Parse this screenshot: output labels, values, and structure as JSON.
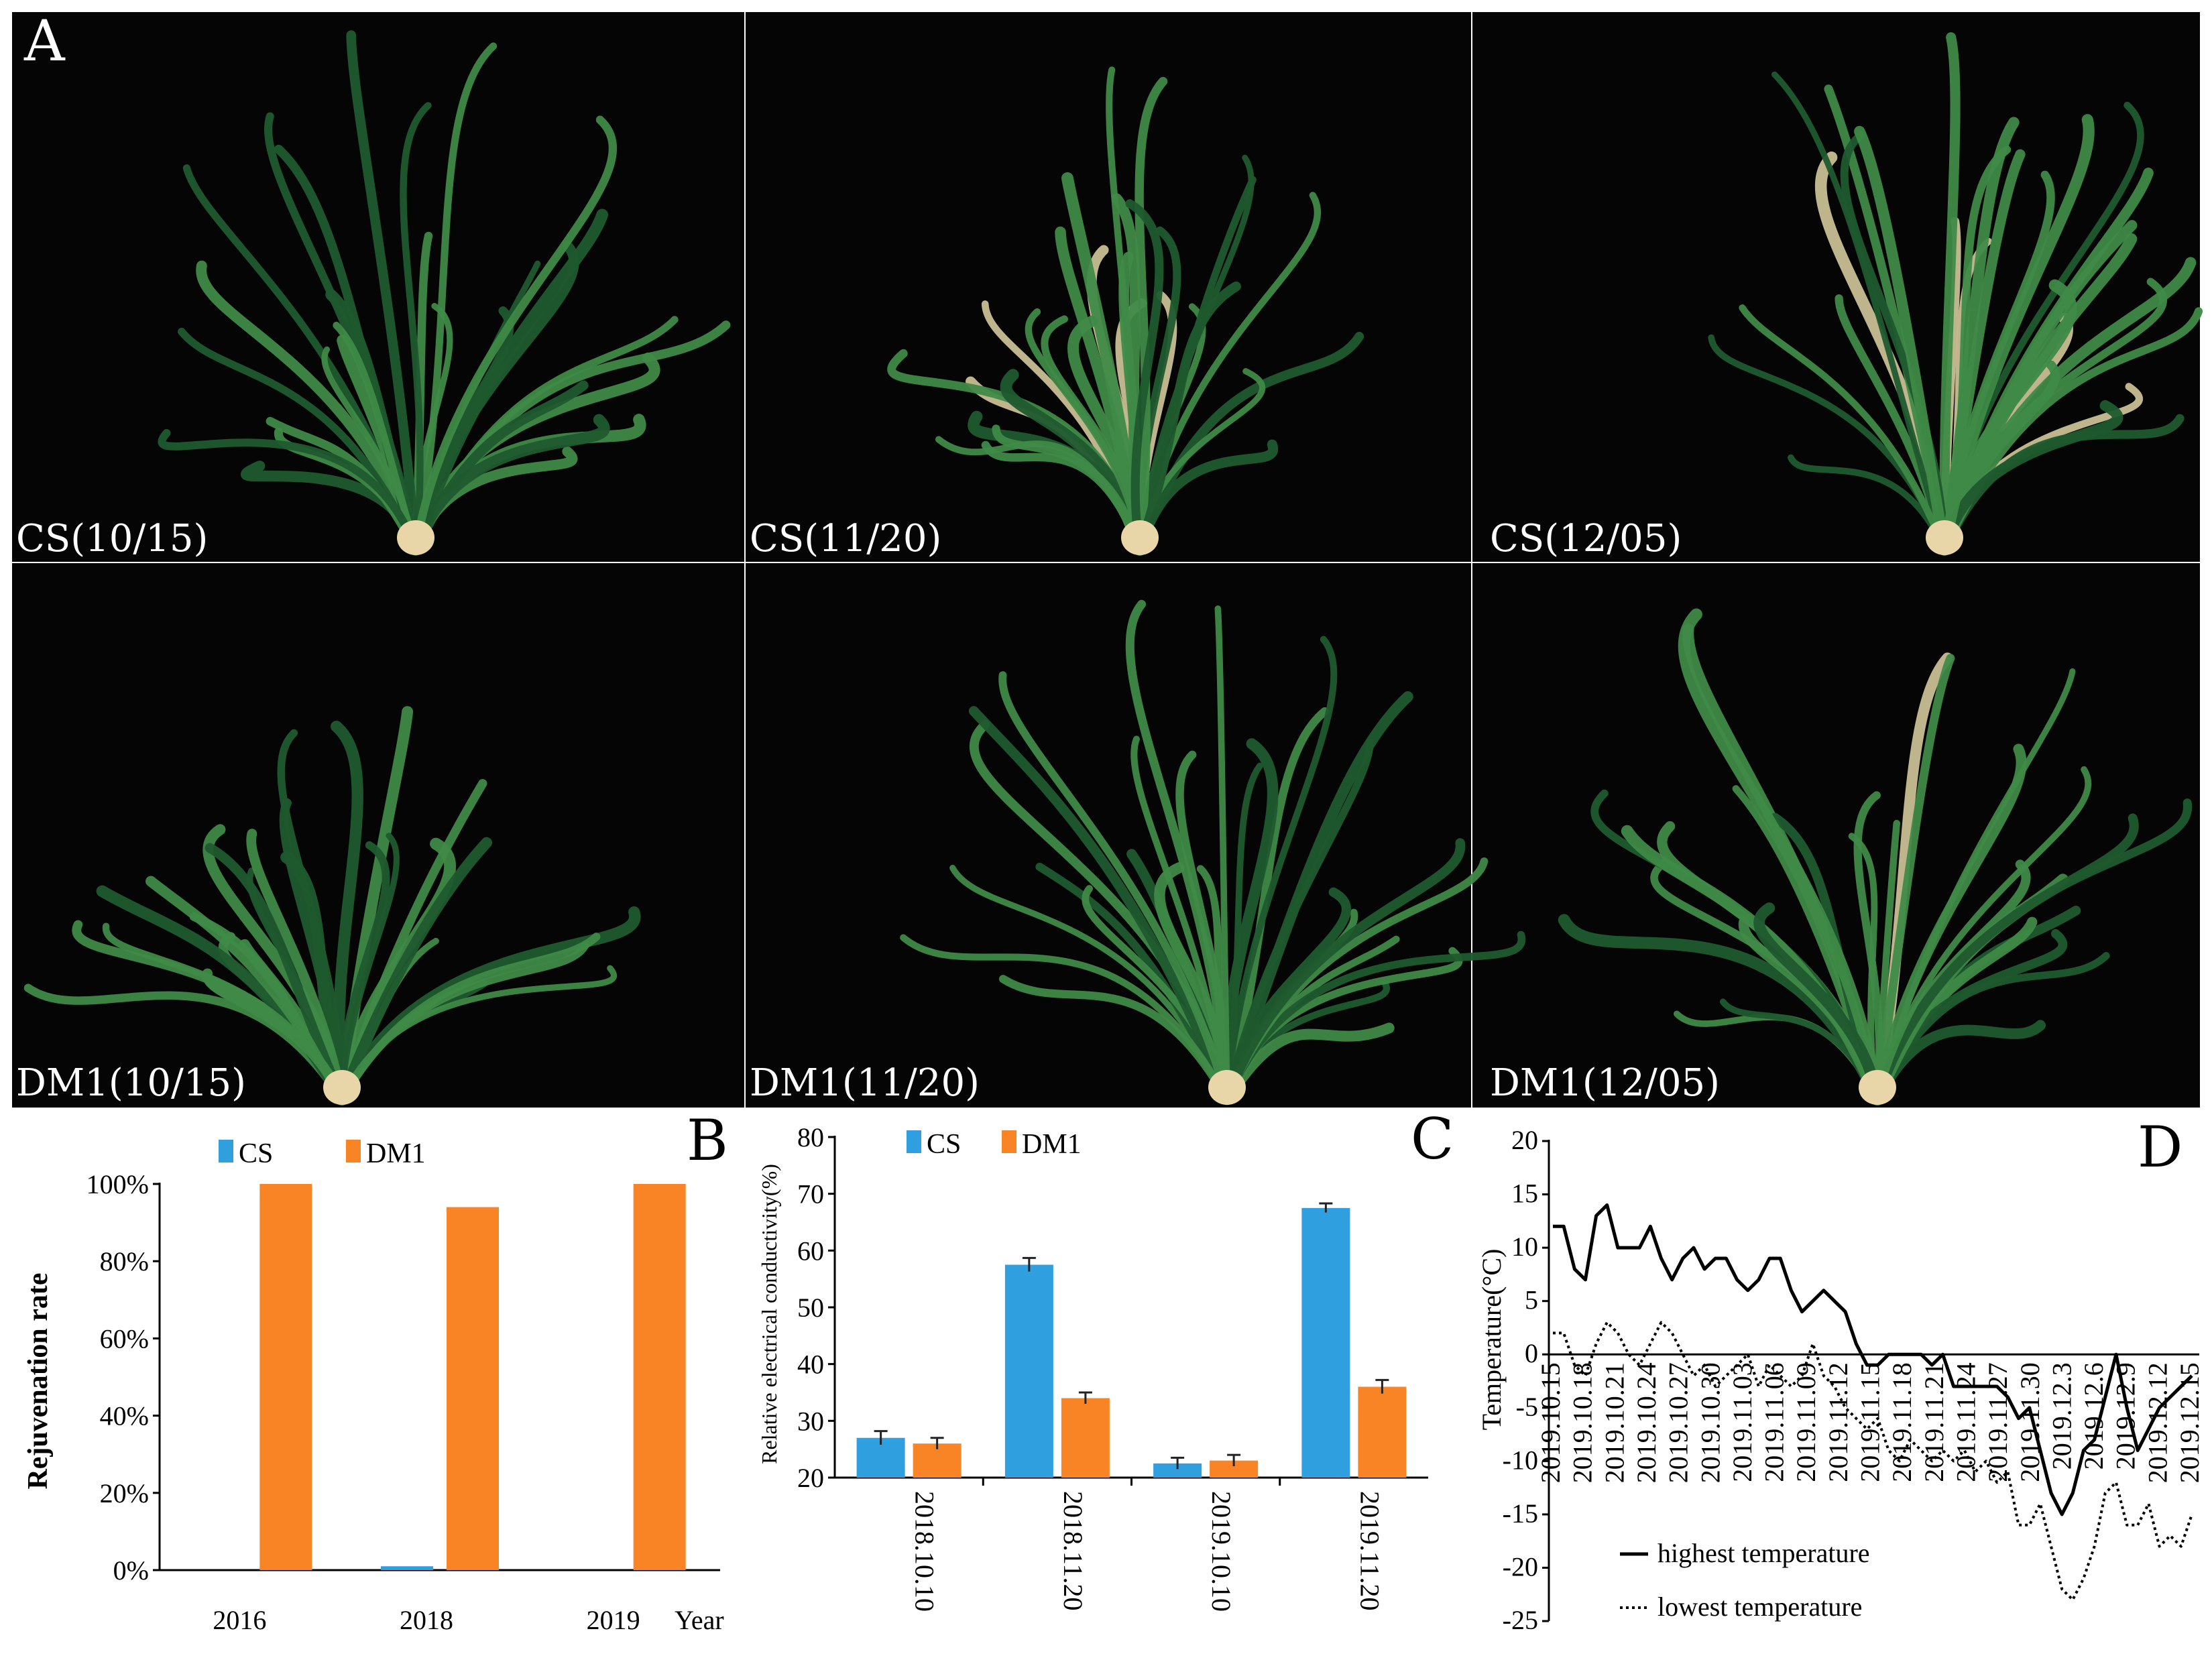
{
  "figure": {
    "panel_letters": {
      "a": "A",
      "b": "B",
      "c": "C",
      "d": "D"
    }
  },
  "photos": {
    "top_row": [
      {
        "label": "CS(10/15)"
      },
      {
        "label": "CS(11/20)"
      },
      {
        "label": "CS(12/05)"
      }
    ],
    "bottom_row": [
      {
        "label": "DM1(10/15)"
      },
      {
        "label": "DM1(11/20)"
      },
      {
        "label": "DM1(12/05)"
      }
    ]
  },
  "colors": {
    "cs": "#2f9fe0",
    "dm1": "#f98426",
    "photo_bg": "#050505",
    "leaf_dark": "#1f5a2e",
    "leaf_light": "#3f8a47",
    "leaf_dry": "#c9bf94",
    "crown": "#e8d6a8"
  },
  "chart_data": [
    {
      "id": "B",
      "type": "bar",
      "categories": [
        "2016",
        "2018",
        "2019"
      ],
      "series": [
        {
          "name": "CS",
          "values": [
            0,
            1,
            0
          ]
        },
        {
          "name": "DM1",
          "values": [
            100,
            94,
            100
          ]
        }
      ],
      "ylabel": "Rejuvenation rate",
      "xlabel": "Year",
      "ylim": [
        0,
        100
      ],
      "y_ticks": [
        "0%",
        "20%",
        "40%",
        "60%",
        "80%",
        "100%"
      ],
      "legend": [
        "CS",
        "DM1"
      ]
    },
    {
      "id": "C",
      "type": "bar",
      "categories": [
        "2018.10.10",
        "2018.11.20",
        "2019.10.10",
        "2019.11.20"
      ],
      "series": [
        {
          "name": "CS",
          "values": [
            27,
            57.5,
            22.5,
            67.5
          ],
          "errors": [
            1.2,
            1.2,
            1,
            0.8
          ]
        },
        {
          "name": "DM1",
          "values": [
            26,
            34,
            23,
            36
          ],
          "errors": [
            1,
            1,
            1,
            1.2
          ]
        }
      ],
      "ylabel": "Relative electrical conductivity(%)",
      "ylim": [
        20,
        80
      ],
      "y_ticks": [
        "20",
        "30",
        "40",
        "50",
        "60",
        "70",
        "80"
      ],
      "legend": [
        "CS",
        "DM1"
      ]
    },
    {
      "id": "D",
      "type": "line",
      "x_labels": [
        "2019.10.15",
        "2019.10.18",
        "2019.10.21",
        "2019.10.24",
        "2019.10.27",
        "2019.10.30",
        "2019.11.03",
        "2019.11.06",
        "2019.11.09",
        "2019.11.12",
        "2019.11.15",
        "2019.11.18",
        "2019.11.21",
        "2019.11.24",
        "2019.11.27",
        "2019.11.30",
        "2019.12.3",
        "2019.12.6",
        "2019.12.9",
        "2019.12.12",
        "2019.12.15"
      ],
      "series": [
        {
          "name": "highest temperature",
          "style": "solid",
          "values": [
            12,
            12,
            8,
            7,
            13,
            14,
            10,
            10,
            10,
            12,
            9,
            7,
            9,
            10,
            8,
            9,
            9,
            7,
            6,
            7,
            9,
            9,
            6,
            4,
            5,
            6,
            5,
            4,
            1,
            -1,
            -1,
            0,
            0,
            0,
            0,
            -1,
            0,
            -3,
            -3,
            -3,
            -3,
            -3,
            -4,
            -6,
            -5,
            -9,
            -13,
            -15,
            -13,
            -9,
            -8,
            -4,
            0,
            -5,
            -9,
            -7,
            -5,
            -4,
            -3,
            -2
          ]
        },
        {
          "name": "lowest temperature",
          "style": "dotted",
          "values": [
            2,
            2,
            -1,
            -2,
            1,
            3,
            2,
            0,
            -1,
            1,
            3,
            2,
            0,
            -2,
            -1,
            -3,
            -2,
            -1,
            0,
            -3,
            -1,
            -2,
            -3,
            -2,
            1,
            -2,
            -3,
            -5,
            -6,
            -7,
            -6,
            -9,
            -10,
            -8,
            -9,
            -10,
            -9,
            -10,
            -9,
            -11,
            -10,
            -12,
            -11,
            -16,
            -16,
            -14,
            -18,
            -22,
            -23,
            -21,
            -18,
            -13,
            -12,
            -16,
            -16,
            -14,
            -18,
            -17,
            -18,
            -15
          ]
        }
      ],
      "ylabel": "Temperature(°C)",
      "ylim": [
        -25,
        20
      ],
      "y_ticks": [
        "20",
        "15",
        "10",
        "5",
        "0",
        "-5",
        "-10",
        "-15",
        "-20",
        "-25"
      ],
      "legend": [
        "highest temperature",
        "lowest temperature"
      ]
    }
  ]
}
